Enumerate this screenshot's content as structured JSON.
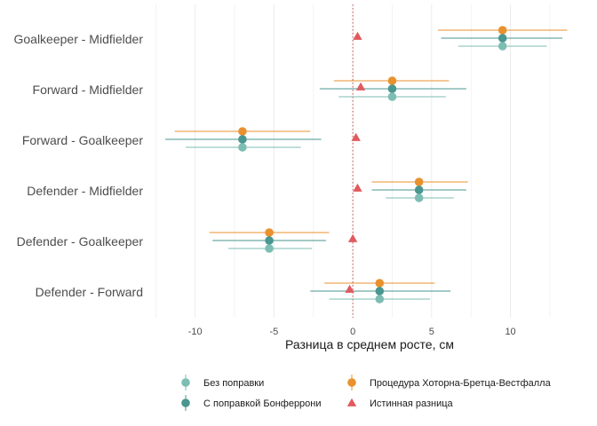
{
  "chart_data": {
    "type": "forest",
    "xlabel": "Разница в среднем росте, см",
    "xlim": [
      -12.8,
      13.8
    ],
    "xticks": [
      -10,
      -5,
      0,
      5,
      10
    ],
    "reference_line": 0,
    "grid": true,
    "legend_position": "bottom",
    "categories": [
      "Goalkeeper - Midfielder",
      "Forward - Midfielder",
      "Forward - Goalkeeper",
      "Defender - Midfielder",
      "Defender - Goalkeeper",
      "Defender - Forward"
    ],
    "series": [
      {
        "name": "Процедура Хоторна-Бретца-Вестфалла",
        "color": "#E8912E",
        "marker": "circle",
        "estimates": [
          9.5,
          2.5,
          -7.0,
          4.2,
          -5.3,
          1.7
        ],
        "lower": [
          5.4,
          -1.2,
          -11.3,
          1.2,
          -9.1,
          -1.8
        ],
        "upper": [
          13.6,
          6.1,
          -2.7,
          7.3,
          -1.5,
          5.2
        ]
      },
      {
        "name": "С поправкой Бонферрони",
        "color": "#4A9690",
        "marker": "circle",
        "estimates": [
          9.5,
          2.5,
          -7.0,
          4.2,
          -5.3,
          1.7
        ],
        "lower": [
          5.6,
          -2.1,
          -11.9,
          1.2,
          -8.9,
          -2.7
        ],
        "upper": [
          13.3,
          7.2,
          -2.0,
          7.2,
          -1.7,
          6.2
        ]
      },
      {
        "name": "Без поправки",
        "color": "#7DBDB3",
        "marker": "circle",
        "estimates": [
          9.5,
          2.5,
          -7.0,
          4.2,
          -5.3,
          1.7
        ],
        "lower": [
          6.7,
          -0.9,
          -10.6,
          2.1,
          -7.9,
          -1.5
        ],
        "upper": [
          12.3,
          5.9,
          -3.3,
          6.4,
          -2.6,
          4.9
        ]
      },
      {
        "name": "Истинная разница",
        "color": "#E05A5E",
        "marker": "triangle",
        "estimates": [
          0.3,
          0.5,
          0.2,
          0.3,
          0.0,
          -0.2
        ]
      }
    ],
    "legend_order": [
      "Без поправки",
      "С поправкой Бонферрони",
      "Процедура Хоторна-Бретца-Вестфалла",
      "Истинная разница"
    ]
  }
}
